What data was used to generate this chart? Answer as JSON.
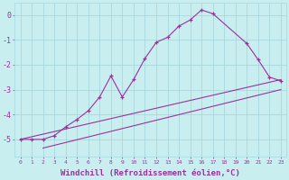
{
  "background_color": "#c8eef0",
  "grid_color": "#a8d8dc",
  "line_color": "#993399",
  "xlabel": "Windchill (Refroidissement éolien,°C)",
  "xlabel_fontsize": 6.5,
  "ylabel_ticks": [
    0,
    -1,
    -2,
    -3,
    -4,
    -5
  ],
  "xlim": [
    -0.5,
    23.5
  ],
  "ylim": [
    -5.7,
    0.5
  ],
  "series": [
    {
      "comment": "straight line 1 - from (0,-5) to (23,-2.6)",
      "x": [
        0,
        23
      ],
      "y": [
        -5.0,
        -2.6
      ],
      "has_markers": false
    },
    {
      "x": [
        2,
        23
      ],
      "y": [
        -5.35,
        -3.0
      ],
      "has_markers": false
    },
    {
      "x": [
        0,
        1,
        2,
        3,
        4,
        5,
        6,
        7,
        8,
        9,
        10,
        11,
        12,
        13,
        14,
        15,
        16,
        17,
        20,
        21,
        22,
        23
      ],
      "y": [
        -5.0,
        -5.0,
        -5.0,
        -4.85,
        -4.5,
        -4.2,
        -3.85,
        -3.3,
        -2.45,
        -3.3,
        -2.6,
        -1.75,
        -1.1,
        -0.9,
        -0.45,
        -0.2,
        0.2,
        0.05,
        -1.15,
        -1.8,
        -2.5,
        -2.65
      ],
      "has_markers": true
    }
  ]
}
